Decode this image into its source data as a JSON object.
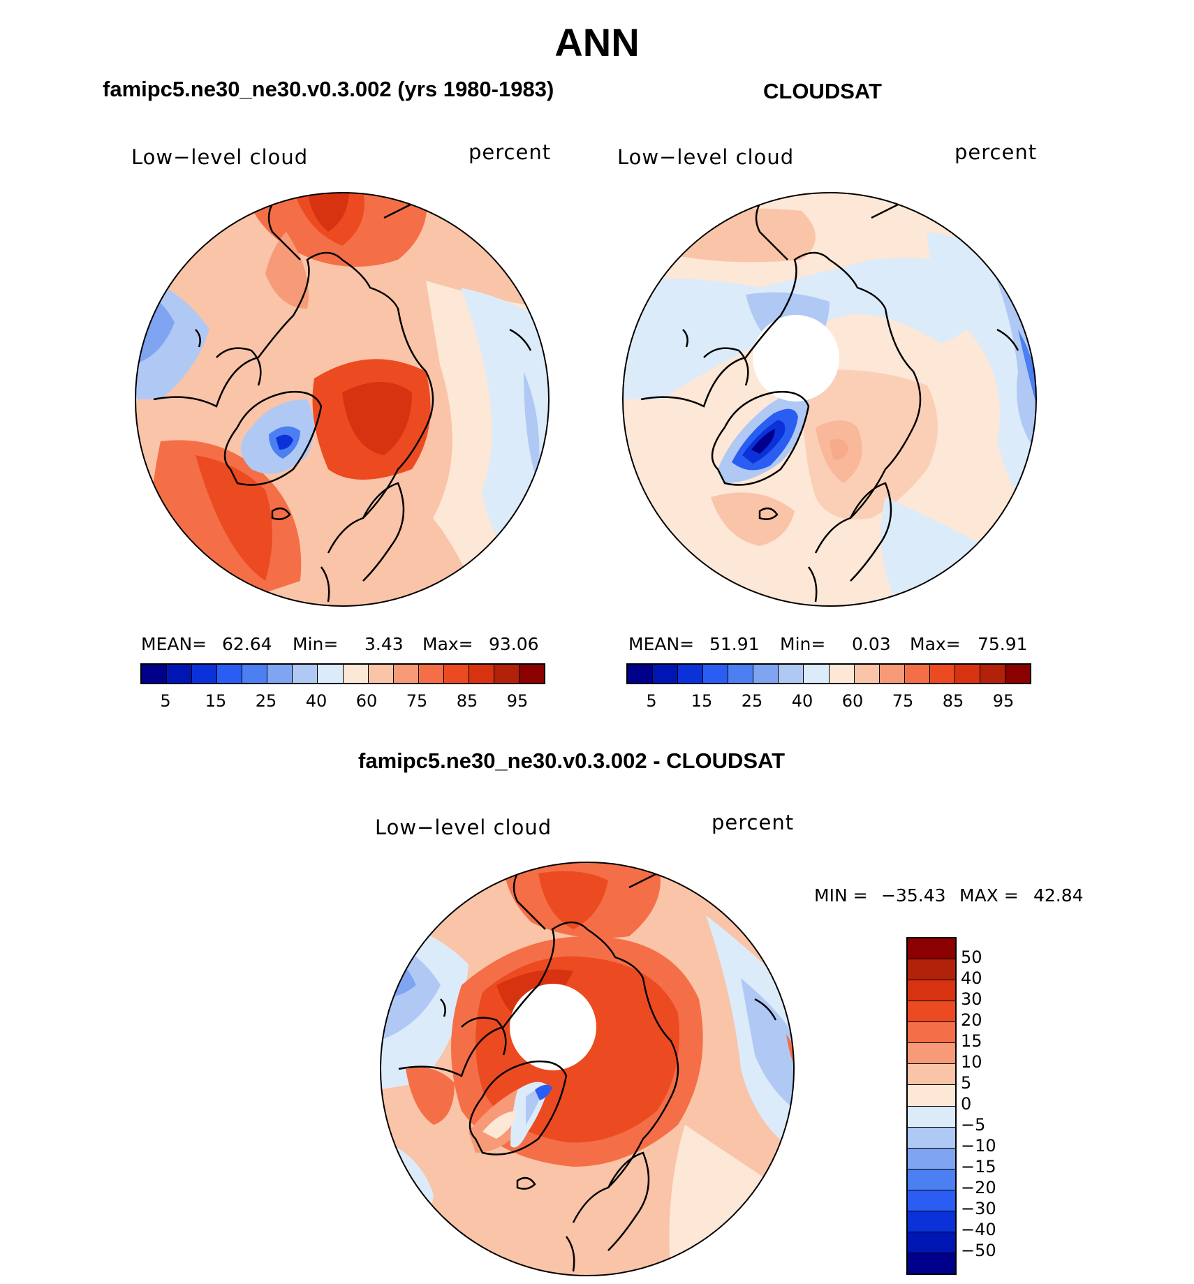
{
  "figure": {
    "title": "ANN",
    "units": "percent",
    "variable": "Low−level cloud"
  },
  "panels": {
    "model": {
      "title": "famipc5.ne30_ne30.v0.3.002 (yrs 1980-1983)",
      "variable": "Low−level cloud",
      "units": "percent",
      "mean_label": "MEAN=",
      "mean": "62.64",
      "min_label": "Min=",
      "min": "3.43",
      "max_label": "Max=",
      "max": "93.06"
    },
    "obs": {
      "title": "CLOUDSAT",
      "variable": "Low−level cloud",
      "units": "percent",
      "mean_label": "MEAN=",
      "mean": "51.91",
      "min_label": "Min=",
      "min": "0.03",
      "max_label": "Max=",
      "max": "75.91"
    },
    "diff": {
      "title": "famipc5.ne30_ne30.v0.3.002 - CLOUDSAT",
      "variable": "Low−level cloud",
      "units": "percent",
      "min_label": "MIN =",
      "min": "−35.43",
      "max_label": "MAX =",
      "max": "42.84"
    }
  },
  "colorbars": {
    "absolute": {
      "colors": [
        "#00008b",
        "#0016b4",
        "#0b32d8",
        "#2a5ef2",
        "#4b7ff2",
        "#7fa4f2",
        "#b0c9f4",
        "#dcebfa",
        "#fde7d6",
        "#f9c4a8",
        "#f79a78",
        "#f46f47",
        "#ec4b22",
        "#d83310",
        "#b2220a",
        "#8b0000"
      ],
      "tick_labels": [
        "5",
        "15",
        "25",
        "40",
        "60",
        "75",
        "85",
        "95"
      ]
    },
    "difference": {
      "colors": [
        "#8b0000",
        "#b2220a",
        "#d83310",
        "#ec4b22",
        "#f46f47",
        "#f79a78",
        "#f9c4a8",
        "#fde7d6",
        "#dcebfa",
        "#b0c9f4",
        "#7fa4f2",
        "#4b7ff2",
        "#2a5ef2",
        "#0b32d8",
        "#0016b4",
        "#00008b"
      ],
      "tick_labels": [
        "50",
        "40",
        "30",
        "20",
        "15",
        "10",
        "5",
        "0",
        "−5",
        "−10",
        "−15",
        "−20",
        "−30",
        "−40",
        "−50"
      ]
    }
  },
  "colors": {
    "land_outline": "#000000",
    "missing": "#ffffff"
  }
}
